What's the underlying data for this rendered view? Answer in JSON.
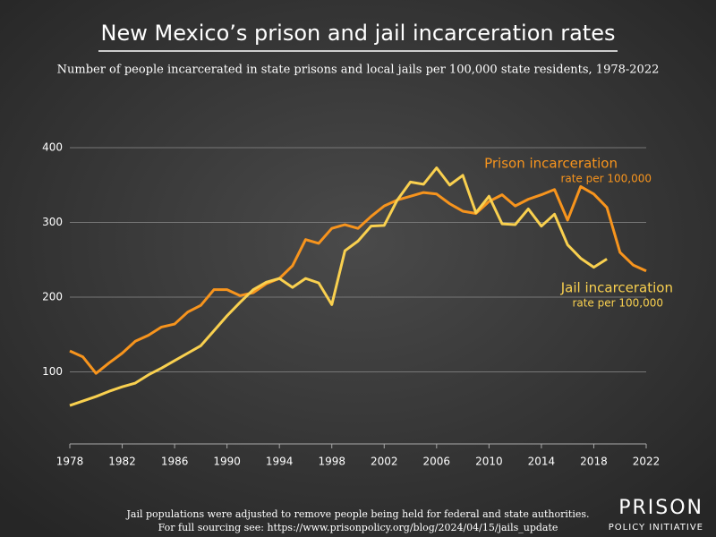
{
  "chart_data": {
    "type": "line",
    "title": "New Mexico’s prison and jail incarceration rates",
    "subtitle": "Number of people incarcerated in state prisons and local jails per 100,000 state residents, 1978-2022",
    "x": [
      1978,
      1979,
      1980,
      1981,
      1982,
      1983,
      1984,
      1985,
      1986,
      1987,
      1988,
      1989,
      1990,
      1991,
      1992,
      1993,
      1994,
      1995,
      1996,
      1997,
      1998,
      1999,
      2000,
      2001,
      2002,
      2003,
      2004,
      2005,
      2006,
      2007,
      2008,
      2009,
      2010,
      2011,
      2012,
      2013,
      2014,
      2015,
      2016,
      2017,
      2018,
      2019,
      2020,
      2021,
      2022
    ],
    "series": [
      {
        "name": "Prison incarceration",
        "color": "#f7941d",
        "values": [
          128,
          120,
          98,
          112,
          125,
          141,
          149,
          160,
          164,
          180,
          189,
          210,
          210,
          202,
          206,
          218,
          225,
          242,
          277,
          272,
          292,
          297,
          292,
          308,
          322,
          330,
          335,
          340,
          338,
          325,
          315,
          312,
          328,
          337,
          322,
          331,
          337,
          344,
          303,
          348,
          338,
          320,
          260,
          243,
          235
        ]
      },
      {
        "name": "Jail incarceration",
        "color": "#f9d04f",
        "values": [
          55,
          61,
          67,
          74,
          80,
          85,
          96,
          105,
          115,
          125,
          135,
          155,
          175,
          193,
          210,
          220,
          225,
          213,
          225,
          219,
          190,
          262,
          275,
          295,
          296,
          330,
          354,
          351,
          373,
          350,
          363,
          313,
          335,
          298,
          297,
          318,
          295,
          311,
          270,
          252,
          240,
          251,
          null,
          null,
          null
        ]
      }
    ],
    "annotations": [
      "rate per 100,000",
      "rate per 100,000"
    ],
    "xlim": [
      1978,
      2022
    ],
    "xticks": [
      1978,
      1982,
      1986,
      1990,
      1994,
      1998,
      2002,
      2006,
      2010,
      2014,
      2018,
      2022
    ],
    "ylim": [
      0,
      400
    ],
    "yticks": [
      100,
      200,
      300,
      400
    ],
    "grid": true,
    "footnotes": [
      "Jail populations were adjusted to remove people being held for federal and state authorities.",
      "For full sourcing see: https://www.prisonpolicy.org/blog/2024/04/15/jails_update"
    ],
    "logo": [
      "PRISON",
      "POLICY INITIATIVE"
    ]
  }
}
